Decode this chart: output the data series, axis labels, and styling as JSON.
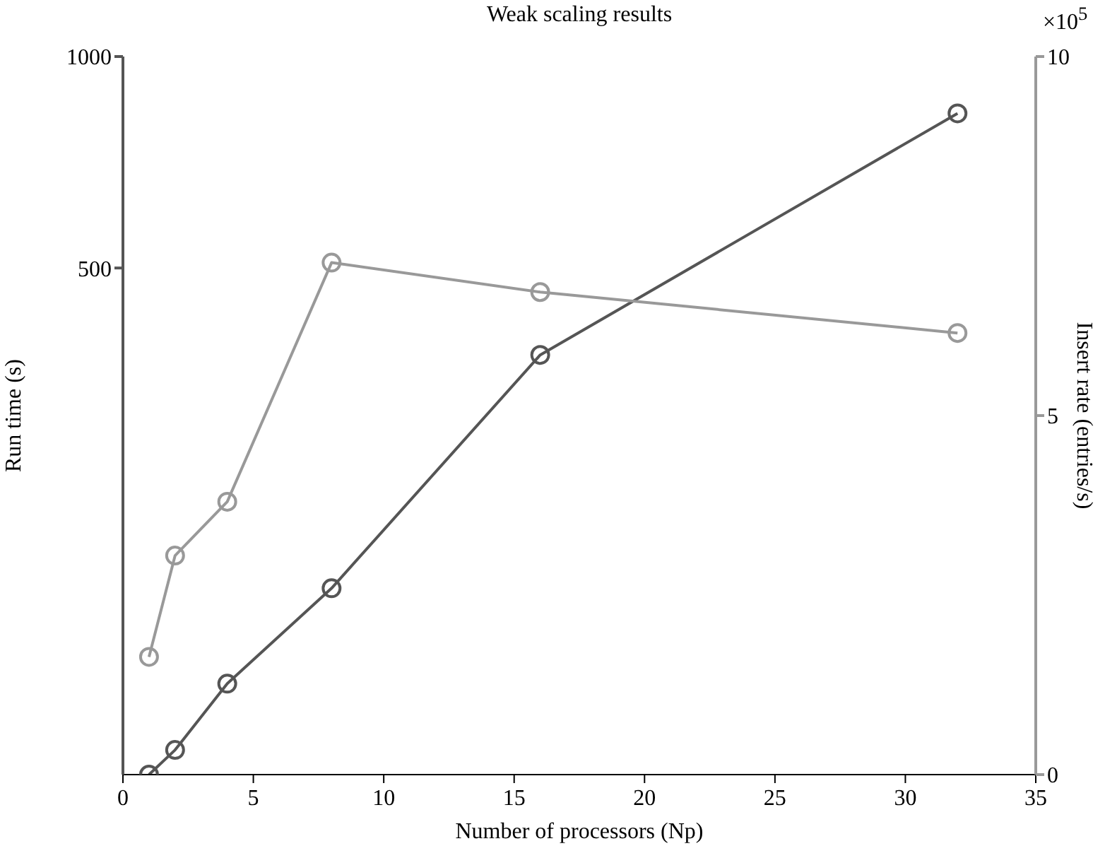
{
  "chart_data": {
    "type": "line",
    "title": "Weak scaling results",
    "xlabel": "Number of processors (Np)",
    "ylabel": "Run time (s)",
    "y2label": "Insert rate (entries/s)",
    "annotations": [
      "×10$^{5}$"
    ],
    "x": [
      1,
      2,
      4,
      8,
      16,
      32
    ],
    "series": [
      {
        "color": "#555555",
        "values": [
          95,
          103,
          128,
          175,
          376,
          830
        ]
      },
      {
        "color": "#999999",
        "axis": "y2",
        "values": [
          1.64,
          3.05,
          3.8,
          7.13,
          6.72,
          6.15
        ]
      }
    ],
    "xlim": [
      0,
      35
    ],
    "xticks": [
      0,
      5,
      10,
      15,
      20,
      25,
      30,
      35
    ],
    "ylim": [
      95,
      1000
    ],
    "yticks": [
      500,
      1000
    ],
    "log": "y",
    "y2lim": [
      0,
      10
    ],
    "y2ticks": [
      0,
      5,
      10
    ],
    "marker": "circle",
    "line_style": "solid",
    "grid": false,
    "legend": false
  }
}
